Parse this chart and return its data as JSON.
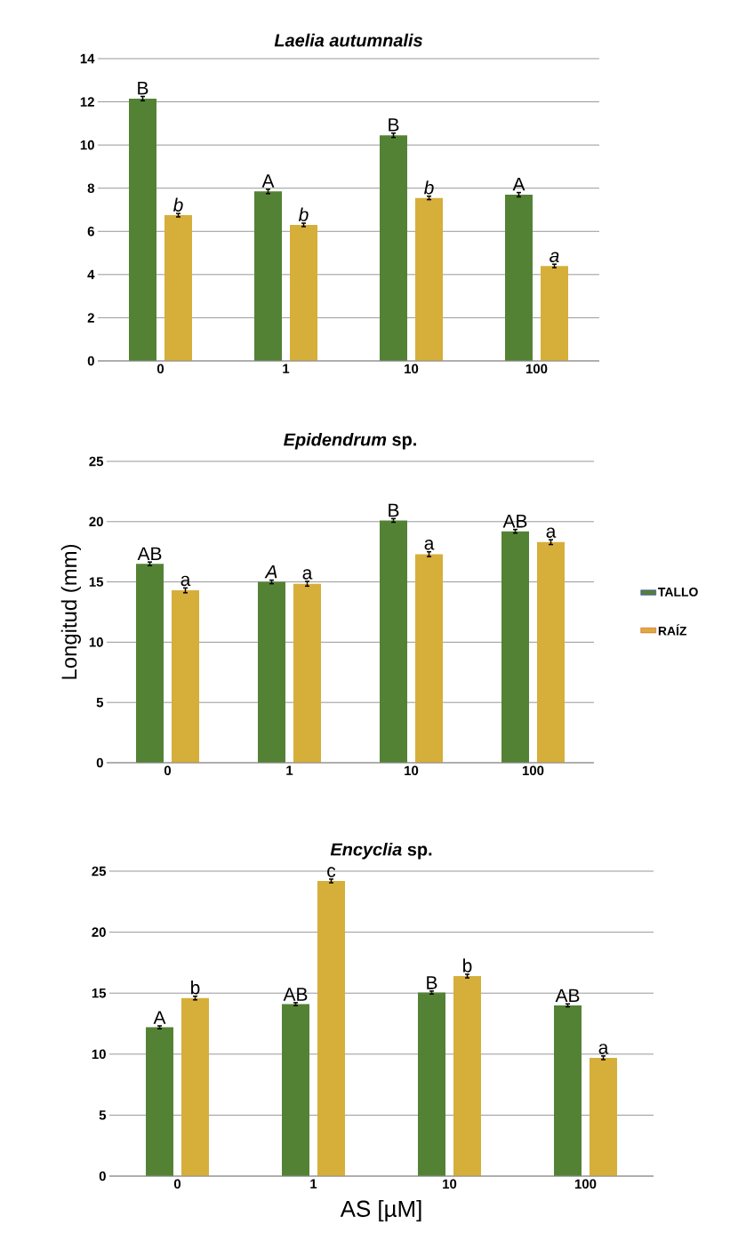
{
  "chart_data": [
    {
      "type": "bar",
      "title": "*Laelia autumnalis*",
      "categories": [
        "0",
        "1",
        "10",
        "100"
      ],
      "ylim": [
        0,
        14
      ],
      "yticks": [
        0,
        2,
        4,
        6,
        8,
        10,
        12,
        14
      ],
      "grid": "y",
      "series": [
        {
          "color": "#548235",
          "values": [
            12.15,
            7.85,
            10.45,
            7.7
          ],
          "errors": [
            0.1,
            0.1,
            0.1,
            0.1
          ]
        },
        {
          "color": "#d6ae3a",
          "values": [
            6.75,
            6.3,
            7.55,
            4.4
          ],
          "errors": [
            0.08,
            0.08,
            0.08,
            0.08
          ]
        }
      ],
      "annotations": [
        {
          "text": "B",
          "x": "0",
          "y": 12.15
        },
        {
          "text": "*b*",
          "x": "0",
          "y": 6.75
        },
        {
          "text": "A",
          "x": "1",
          "y": 7.85
        },
        {
          "text": "*b*",
          "x": "1",
          "y": 6.3
        },
        {
          "text": "B",
          "x": "10",
          "y": 10.45
        },
        {
          "text": "*b*",
          "x": "10",
          "y": 7.55
        },
        {
          "text": "A",
          "x": "100",
          "y": 7.7
        },
        {
          "text": "*a*",
          "x": "100",
          "y": 4.4
        }
      ]
    },
    {
      "type": "bar",
      "title": "*Epidendrum* sp.",
      "ylabel": "Longitud (mm)",
      "categories": [
        "0",
        "1",
        "10",
        "100"
      ],
      "ylim": [
        0,
        25
      ],
      "yticks": [
        0,
        5,
        10,
        15,
        20,
        25
      ],
      "grid": "y",
      "legend": "right",
      "series": [
        {
          "name": "TALLO",
          "color": "#548235",
          "values": [
            16.5,
            15.0,
            20.1,
            19.2
          ],
          "errors": [
            0.15,
            0.15,
            0.15,
            0.15
          ]
        },
        {
          "name": "RAÍZ",
          "color": "#d6ae3a",
          "values": [
            14.3,
            14.85,
            17.3,
            18.3
          ],
          "errors": [
            0.2,
            0.2,
            0.2,
            0.2
          ]
        }
      ],
      "annotations": [
        {
          "text": "AB",
          "x": "0",
          "y": 16.5
        },
        {
          "text": "a",
          "x": "0",
          "y": 14.3
        },
        {
          "text": "*A*",
          "x": "1",
          "y": 15.0
        },
        {
          "text": "a",
          "x": "1",
          "y": 14.85
        },
        {
          "text": "B",
          "x": "10",
          "y": 20.1
        },
        {
          "text": "a",
          "x": "10",
          "y": 17.3
        },
        {
          "text": "AB",
          "x": "100",
          "y": 19.2
        },
        {
          "text": "a",
          "x": "100",
          "y": 18.3
        }
      ]
    },
    {
      "type": "bar",
      "title": "*Encyclia* sp.",
      "xlabel": "AS [µM]",
      "categories": [
        "0",
        "1",
        "10",
        "100"
      ],
      "ylim": [
        0,
        25
      ],
      "yticks": [
        0,
        5,
        10,
        15,
        20,
        25
      ],
      "grid": "y",
      "series": [
        {
          "color": "#548235",
          "values": [
            12.2,
            14.1,
            15.05,
            14.0
          ],
          "errors": [
            0.12,
            0.12,
            0.12,
            0.12
          ]
        },
        {
          "color": "#d6ae3a",
          "values": [
            14.6,
            24.2,
            16.4,
            9.7
          ],
          "errors": [
            0.15,
            0.15,
            0.15,
            0.15
          ]
        }
      ],
      "annotations": [
        {
          "text": "A",
          "x": "0",
          "y": 12.2
        },
        {
          "text": "b",
          "x": "0",
          "y": 14.6
        },
        {
          "text": "AB",
          "x": "1",
          "y": 14.1
        },
        {
          "text": "c",
          "x": "1",
          "y": 24.2
        },
        {
          "text": "B",
          "x": "10",
          "y": 15.05
        },
        {
          "text": "b",
          "x": "10",
          "y": 16.4
        },
        {
          "text": "AB",
          "x": "100",
          "y": 14.0
        },
        {
          "text": "a",
          "x": "100",
          "y": 9.7
        }
      ]
    }
  ]
}
